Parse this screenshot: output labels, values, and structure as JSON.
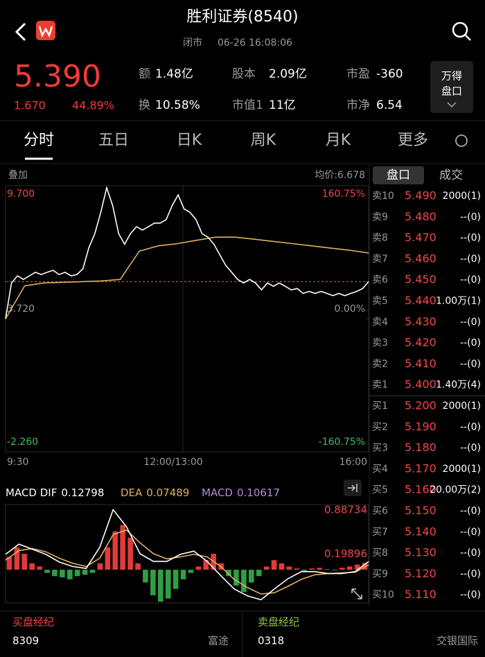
{
  "header": {
    "title": "胜利证券(8540)",
    "status": "闭市",
    "time": "06-26 16:08:06"
  },
  "quote": {
    "price": "5.390",
    "change": "1.670",
    "change_pct": "44.89%",
    "stats": [
      [
        "额",
        "1.48亿"
      ],
      [
        "股本",
        "2.09亿"
      ],
      [
        "市盈",
        "-360"
      ],
      [
        "换",
        "10.58%"
      ],
      [
        "市值1",
        "11亿"
      ],
      [
        "市净",
        "6.54"
      ]
    ],
    "button": [
      "万得",
      "盘口"
    ]
  },
  "tabs": [
    "分时",
    "五日",
    "日K",
    "周K",
    "月K",
    "更多"
  ],
  "overlay": "叠加",
  "avg_price": "均价:6.678",
  "book_tabs": [
    "盘口",
    "成交"
  ],
  "chart_data": [
    {
      "type": "line",
      "x_labels": [
        "9:30",
        "12:00/13:00",
        "16:00"
      ],
      "ylim": [
        -2.26,
        9.7
      ],
      "yticks": [
        {
          "value": 9.7,
          "label": "9.700"
        },
        {
          "value": 3.72,
          "label": "3.720"
        },
        {
          "value": -2.26,
          "label": "-2.260"
        }
      ],
      "y2lim": [
        -160.75,
        160.75
      ],
      "y2ticks": [
        {
          "value": 160.75,
          "label": "160.75%"
        },
        {
          "value": 0,
          "label": "0.00%"
        },
        {
          "value": -160.75,
          "label": "-160.75%"
        }
      ],
      "tick_colors": [
        "#f04848",
        "#9a9a9a",
        "#3fbf5f"
      ],
      "series": [
        {
          "color": "#ffffff",
          "values": [
            3.72,
            5.33,
            5.65,
            5.49,
            5.65,
            5.81,
            5.71,
            5.81,
            5.9,
            5.71,
            5.81,
            5.65,
            5.71,
            5.97,
            6.92,
            7.55,
            8.5,
            9.61,
            8.81,
            7.55,
            7.07,
            7.55,
            7.86,
            7.71,
            7.86,
            8.02,
            8.02,
            8.18,
            8.81,
            9.29,
            8.66,
            8.5,
            8.18,
            7.55,
            7.39,
            7.07,
            6.6,
            6.12,
            5.81,
            5.49,
            5.33,
            5.49,
            5.33,
            5.02,
            5.33,
            5.18,
            5.33,
            5.18,
            5.02,
            5.08,
            4.86,
            4.95,
            4.86,
            4.95,
            4.86,
            4.76,
            4.86,
            4.76,
            4.86,
            4.95,
            5.08,
            5.39
          ]
        },
        {
          "color": "#e0b25c",
          "values": [
            3.72,
            5.2,
            5.33,
            5.36,
            5.39,
            5.42,
            5.49,
            6.76,
            7.0,
            7.1,
            7.25,
            7.39,
            7.39,
            7.3,
            7.2,
            7.1,
            7.0,
            6.9,
            6.8,
            6.678
          ]
        }
      ],
      "ref_color": "#d07a3a"
    },
    {
      "type": "macd",
      "ylim": [
        -0.52,
        1.02
      ],
      "yticks": [
        0.88734,
        0.19896
      ],
      "up_color": "#e03a3a",
      "down_color": "#2f9e44",
      "label_color": "#f04848",
      "series": [
        {
          "name": "MACD DIF",
          "color": "#ffffff",
          "values": [
            0.24,
            0.4,
            0.32,
            0.24,
            0.12,
            0.05,
            0.02,
            0.35,
            0.94,
            0.67,
            0.25,
            0.13,
            0.13,
            0.24,
            0.29,
            0.13,
            -0.09,
            -0.3,
            -0.41,
            -0.47,
            -0.3,
            -0.14,
            -0.03,
            -0.03,
            -0.06,
            -0.06,
            -0.03,
            0.12798
          ]
        },
        {
          "name": "DEA",
          "color": "#e0b25c",
          "values": [
            0.15,
            0.3,
            0.33,
            0.28,
            0.18,
            0.1,
            0.05,
            0.18,
            0.55,
            0.62,
            0.42,
            0.25,
            0.17,
            0.2,
            0.24,
            0.2,
            0.05,
            -0.15,
            -0.28,
            -0.38,
            -0.36,
            -0.26,
            -0.15,
            -0.08,
            -0.06,
            -0.05,
            -0.04,
            0.07489
          ]
        },
        {
          "name": "MACD",
          "color": "#b48fd8",
          "values": [
            0.2,
            0.35,
            0.25,
            0.1,
            0.05,
            -0.05,
            -0.1,
            -0.12,
            -0.15,
            -0.1,
            -0.08,
            -0.05,
            0.1,
            0.35,
            0.6,
            0.7,
            0.5,
            0.1,
            -0.2,
            -0.4,
            -0.5,
            -0.45,
            -0.3,
            -0.15,
            -0.05,
            0.05,
            0.15,
            0.25,
            0.1,
            -0.1,
            -0.25,
            -0.35,
            -0.2,
            -0.1,
            0.05,
            0.15,
            0.1,
            0.05,
            0.02,
            -0.02,
            0.02,
            0.03,
            0.01,
            -0.01,
            0.03,
            0.05,
            0.08,
            0.10617
          ]
        }
      ]
    }
  ],
  "orderbook": {
    "rows": [
      [
        "卖10",
        "5.490",
        "2000(1)"
      ],
      [
        "卖9",
        "5.480",
        "--(0)"
      ],
      [
        "卖8",
        "5.470",
        "--(0)"
      ],
      [
        "卖7",
        "5.460",
        "--(0)"
      ],
      [
        "卖6",
        "5.450",
        "--(0)"
      ],
      [
        "卖5",
        "5.440",
        "1.00万(1)"
      ],
      [
        "卖4",
        "5.430",
        "--(0)"
      ],
      [
        "卖3",
        "5.420",
        "--(0)"
      ],
      [
        "卖2",
        "5.410",
        "--(0)"
      ],
      [
        "卖1",
        "5.400",
        "1.40万(4)"
      ],
      [
        "买1",
        "5.200",
        "2000(1)"
      ],
      [
        "买2",
        "5.190",
        "--(0)"
      ],
      [
        "买3",
        "5.180",
        "--(0)"
      ],
      [
        "买4",
        "5.170",
        "2000(1)"
      ],
      [
        "买5",
        "5.160",
        "20.00万(2)"
      ],
      [
        "买6",
        "5.150",
        "--(0)"
      ],
      [
        "买7",
        "5.140",
        "--(0)"
      ],
      [
        "买8",
        "5.130",
        "--(0)"
      ],
      [
        "买9",
        "5.120",
        "--(0)"
      ],
      [
        "买10",
        "5.110",
        "--(0)"
      ]
    ]
  },
  "brokers": {
    "buy": {
      "title": "买盘经纪",
      "code": "8309",
      "name": "富途"
    },
    "sell": {
      "title": "卖盘经纪",
      "code": "0318",
      "name": "交银国际"
    }
  }
}
